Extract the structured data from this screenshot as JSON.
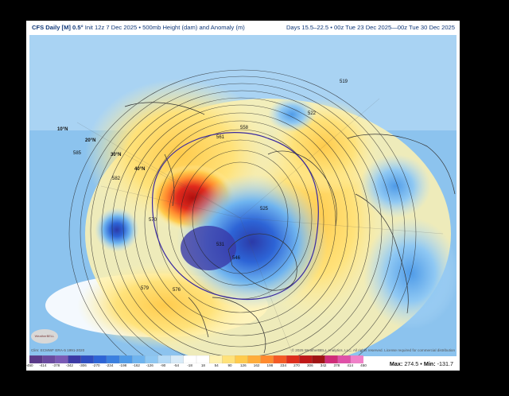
{
  "title": {
    "model": "CFS Daily [M] 0.5°",
    "init": "Init 12z 7 Dec 2025",
    "field": "500mb Height (dam) and Anomaly (m)",
    "valid": "Days 15.5–22.5 • 00z Tue 23 Dec 2025—00z Tue 30 Dec 2025"
  },
  "credits": {
    "left": "Clim: ECMWF ERA-5 1991-2020",
    "right": "© 2025 WeatherBELL Analytics, LLC. All rights reserved. License required for commercial distribution"
  },
  "logo_text": "WeatherBELL",
  "stats": {
    "max_label": "Max:",
    "max_value": "274.5",
    "min_label": "Min:",
    "min_value": "-131.7"
  },
  "colorbar": {
    "ticks": [
      "-450",
      "-414",
      "-378",
      "-342",
      "-306",
      "-270",
      "-234",
      "-198",
      "-162",
      "-126",
      "-90",
      "-54",
      "-18",
      "18",
      "54",
      "90",
      "126",
      "162",
      "198",
      "234",
      "270",
      "306",
      "342",
      "378",
      "414",
      "450"
    ],
    "colors": [
      "#5a3a8a",
      "#6a4aa0",
      "#7a5ab6",
      "#3b3aa6",
      "#2e4ec2",
      "#2d64d6",
      "#3b80e0",
      "#4f9be8",
      "#6fb4ef",
      "#8fc8f3",
      "#b5dbf7",
      "#d8ebf8",
      "#ffffff",
      "#ffffff",
      "#fff2b0",
      "#ffe27a",
      "#ffcb4d",
      "#ffad3a",
      "#ff8a2e",
      "#f45a24",
      "#de2e1c",
      "#c01818",
      "#a01414",
      "#d02c78",
      "#e050a8",
      "#f080c8"
    ]
  },
  "contour_labels": [
    "585",
    "582",
    "579",
    "576",
    "570",
    "561",
    "558",
    "546",
    "531",
    "525",
    "522",
    "519"
  ],
  "lat_labels": [
    "10°N",
    "20°N",
    "30°N",
    "40°N"
  ]
}
